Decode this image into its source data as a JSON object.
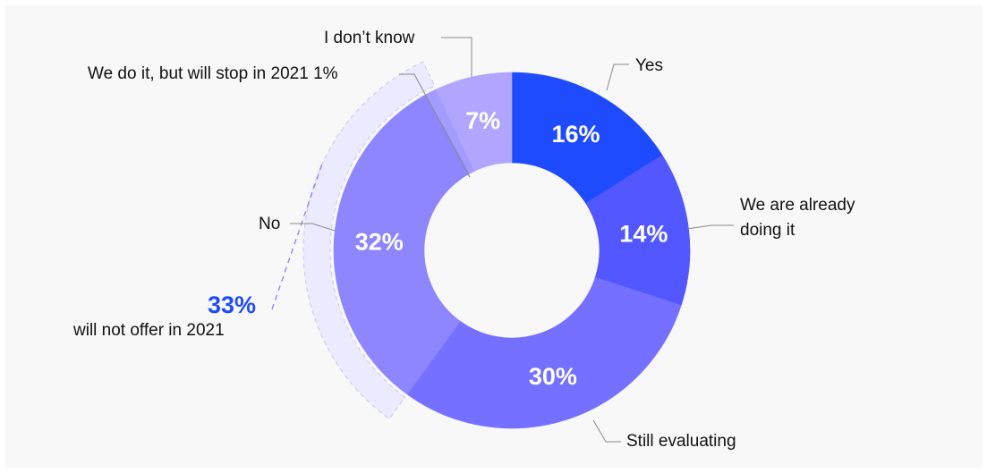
{
  "chart_data": {
    "type": "pie",
    "donut": true,
    "slices": [
      {
        "key": "yes",
        "label": "Yes",
        "value": 16,
        "value_label": "16%",
        "color": "#1f4bff"
      },
      {
        "key": "already",
        "label_lines": [
          "We are already",
          "doing it"
        ],
        "value": 14,
        "value_label": "14%",
        "color": "#5257ff"
      },
      {
        "key": "evaluating",
        "label": "Still evaluating",
        "value": 30,
        "value_label": "30%",
        "color": "#7570ff"
      },
      {
        "key": "no",
        "label": "No",
        "value": 32,
        "value_label": "32%",
        "color": "#8d86ff"
      },
      {
        "key": "stop",
        "label": "We do it, but will stop in 2021 1%",
        "value": 1,
        "value_label": "",
        "color": "#a29cff"
      },
      {
        "key": "dontknow",
        "label": "I don’t know",
        "value": 7,
        "value_label": "7%",
        "color": "#b1a6ff"
      }
    ],
    "annotation": {
      "value": "33%",
      "text": "will not offer in 2021",
      "color": "#1f4bff"
    }
  }
}
